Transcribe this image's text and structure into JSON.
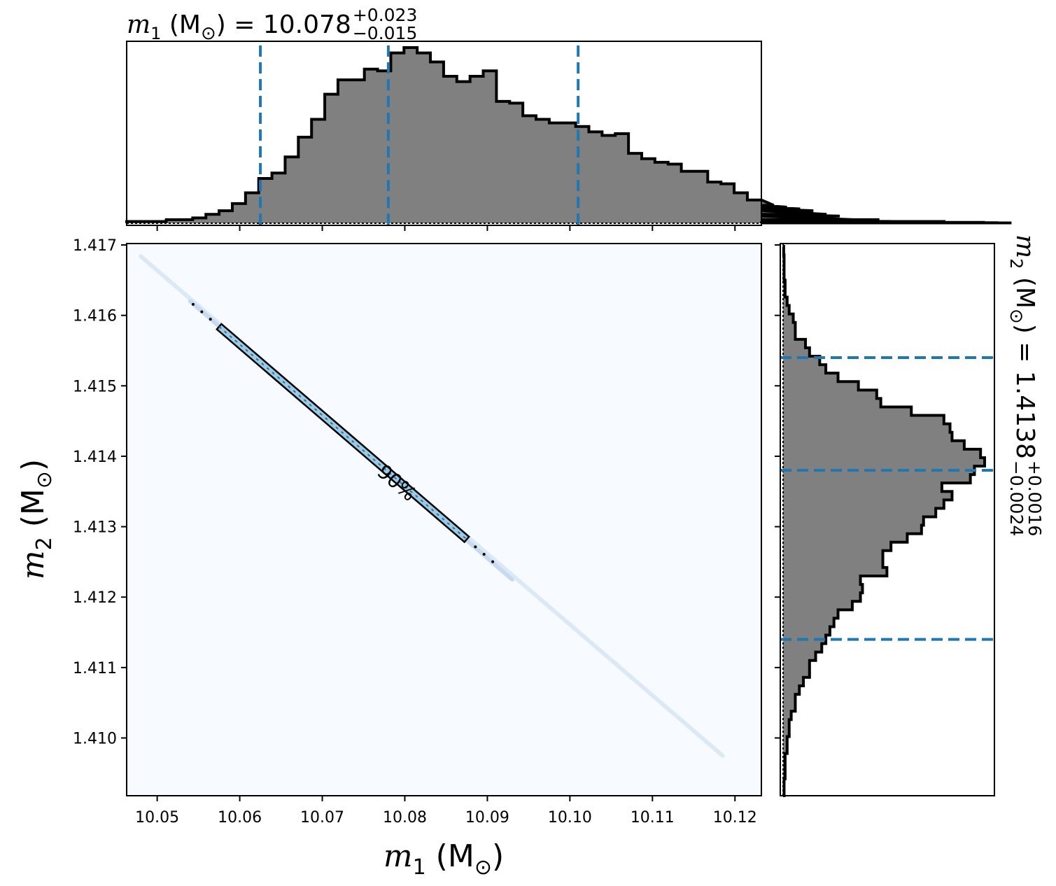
{
  "chart_data": [
    {
      "type": "histogram",
      "panel": "top-marginal",
      "title": {
        "symbol": "m",
        "sub": "1",
        "unit_open": " (M",
        "unit_sym": "⊙",
        "unit_close": ") = 10.078",
        "upper": "+0.023",
        "lower": "−0.015"
      },
      "xlim": [
        10.0463,
        10.1232
      ],
      "bins_start": 10.0463,
      "bin_width": 0.0016,
      "counts": [
        0.01,
        0.01,
        0.01,
        0.02,
        0.02,
        0.03,
        0.05,
        0.07,
        0.11,
        0.17,
        0.25,
        0.28,
        0.37,
        0.48,
        0.58,
        0.72,
        0.8,
        0.8,
        0.86,
        0.85,
        0.95,
        0.98,
        0.95,
        0.9,
        0.82,
        0.79,
        0.82,
        0.85,
        0.68,
        0.67,
        0.6,
        0.58,
        0.56,
        0.56,
        0.54,
        0.51,
        0.49,
        0.5,
        0.39,
        0.36,
        0.34,
        0.33,
        0.29,
        0.29,
        0.23,
        0.22,
        0.17,
        0.13,
        0.13,
        0.1,
        0.09,
        0.08,
        0.07,
        0.05,
        0.04,
        0.02,
        0.02,
        0.02,
        0.01,
        0.01,
        0.01,
        0.01,
        0.01,
        0.005,
        0.005,
        0.005,
        0.003,
        0.002
      ],
      "vlines": [
        10.0625,
        10.078,
        10.101
      ],
      "vline_color": "#1f77b4",
      "fill_color": "#808080"
    },
    {
      "type": "heatmap",
      "panel": "joint",
      "xlabel": {
        "symbol": "m",
        "sub": "1",
        "unit_open": " (M",
        "unit_sym": "⊙",
        "unit_close": ")"
      },
      "ylabel": {
        "symbol": "m",
        "sub": "2",
        "unit_open": " (M",
        "unit_sym": "⊙",
        "unit_close": ")"
      },
      "xlim": [
        10.0463,
        10.1232
      ],
      "ylim": [
        1.40918,
        1.41702
      ],
      "xticks": [
        10.05,
        10.06,
        10.07,
        10.08,
        10.09,
        10.1,
        10.11,
        10.12
      ],
      "xtick_labels": [
        "10.05",
        "10.06",
        "10.07",
        "10.08",
        "10.09",
        "10.10",
        "10.11",
        "10.12"
      ],
      "yticks": [
        1.41,
        1.411,
        1.412,
        1.413,
        1.414,
        1.415,
        1.416,
        1.417
      ],
      "ytick_labels": [
        "1.410",
        "1.411",
        "1.412",
        "1.413",
        "1.414",
        "1.415",
        "1.416",
        "1.417"
      ],
      "background_color": "#f7fbff",
      "ridge": {
        "start": [
          10.048,
          1.41684
        ],
        "end": [
          10.1185,
          1.40975
        ]
      },
      "contour": {
        "label": "90%",
        "start": [
          10.0575,
          1.41584
        ],
        "end": [
          10.0875,
          1.41282
        ]
      }
    },
    {
      "type": "histogram",
      "panel": "right-marginal",
      "orientation": "horizontal",
      "title": {
        "symbol": "m",
        "sub": "2",
        "unit_open": " (M",
        "unit_sym": "⊙",
        "unit_close": ") = 1.4138",
        "upper": "+0.0016",
        "lower": "−0.0024"
      },
      "ylim": [
        1.40918,
        1.41702
      ],
      "bins_start": 1.40918,
      "bin_width": 0.00012,
      "counts": [
        0.005,
        0.005,
        0.01,
        0.01,
        0.01,
        0.02,
        0.02,
        0.03,
        0.03,
        0.04,
        0.06,
        0.06,
        0.08,
        0.1,
        0.13,
        0.13,
        0.16,
        0.19,
        0.21,
        0.23,
        0.25,
        0.27,
        0.34,
        0.38,
        0.39,
        0.38,
        0.51,
        0.49,
        0.49,
        0.53,
        0.61,
        0.68,
        0.69,
        0.75,
        0.79,
        0.83,
        0.78,
        0.92,
        0.94,
        0.99,
        0.97,
        0.89,
        0.83,
        0.82,
        0.79,
        0.63,
        0.48,
        0.46,
        0.37,
        0.27,
        0.21,
        0.18,
        0.13,
        0.11,
        0.06,
        0.06,
        0.05,
        0.03,
        0.02,
        0.01,
        0.01,
        0.005,
        0.005,
        0.005,
        0.003
      ],
      "hlines": [
        1.4114,
        1.4138,
        1.4154
      ],
      "hline_color": "#1f77b4",
      "fill_color": "#808080"
    }
  ]
}
